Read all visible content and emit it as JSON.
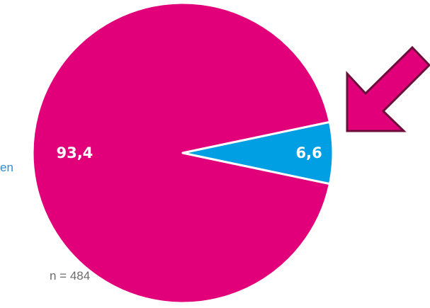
{
  "chart_data": {
    "type": "pie",
    "title": "",
    "values": [
      93.4,
      6.6
    ],
    "labels": [
      "93,4",
      "6,6"
    ],
    "colors": [
      "#e2007a",
      "#009fe3"
    ],
    "legend_text": "en",
    "sample_size": "n = 484"
  },
  "annotation": {
    "icon": "arrow-icon",
    "direction": "pointing down-left toward the small slice",
    "fill": "#e2007a",
    "stroke": "#6b0f3a"
  },
  "colors": {
    "background": "#ffffff",
    "slice_separator": "#ffffff",
    "legend_text": "#2a8fd6",
    "footnote_text": "#6b6b6b"
  }
}
